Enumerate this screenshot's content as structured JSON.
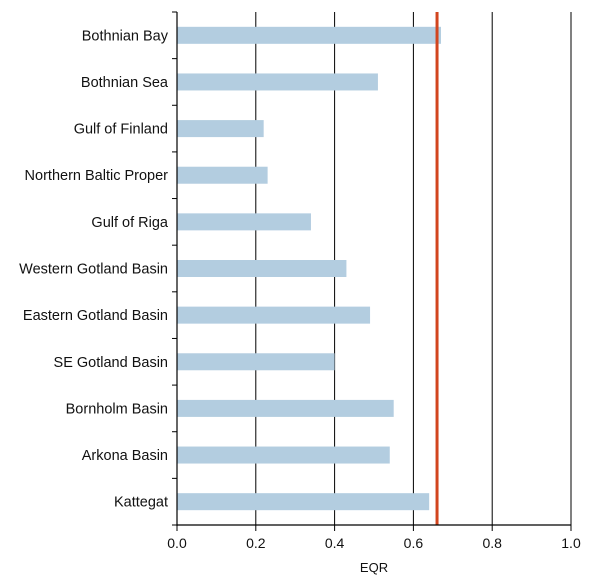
{
  "chart_data": {
    "type": "bar",
    "orientation": "horizontal",
    "categories": [
      "Bothnian Bay",
      "Bothnian Sea",
      "Gulf of Finland",
      "Northern Baltic Proper",
      "Gulf of Riga",
      "Western Gotland Basin",
      "Eastern Gotland Basin",
      "SE Gotland Basin",
      "Bornholm Basin",
      "Arkona Basin",
      "Kattegat"
    ],
    "values": [
      0.67,
      0.51,
      0.22,
      0.23,
      0.34,
      0.43,
      0.49,
      0.4,
      0.55,
      0.54,
      0.64
    ],
    "xlabel": "EQR",
    "ylabel": "",
    "title": "",
    "xlim": [
      0,
      1
    ],
    "xticks": [
      "0.0",
      "0.2",
      "0.4",
      "0.6",
      "0.8",
      "1.0"
    ],
    "grid": "vertical",
    "reference_line": 0.66,
    "colors": {
      "bar": "#b3cde0",
      "reference_line": "#d2451e",
      "grid": "#000000",
      "axis": "#000000"
    }
  }
}
